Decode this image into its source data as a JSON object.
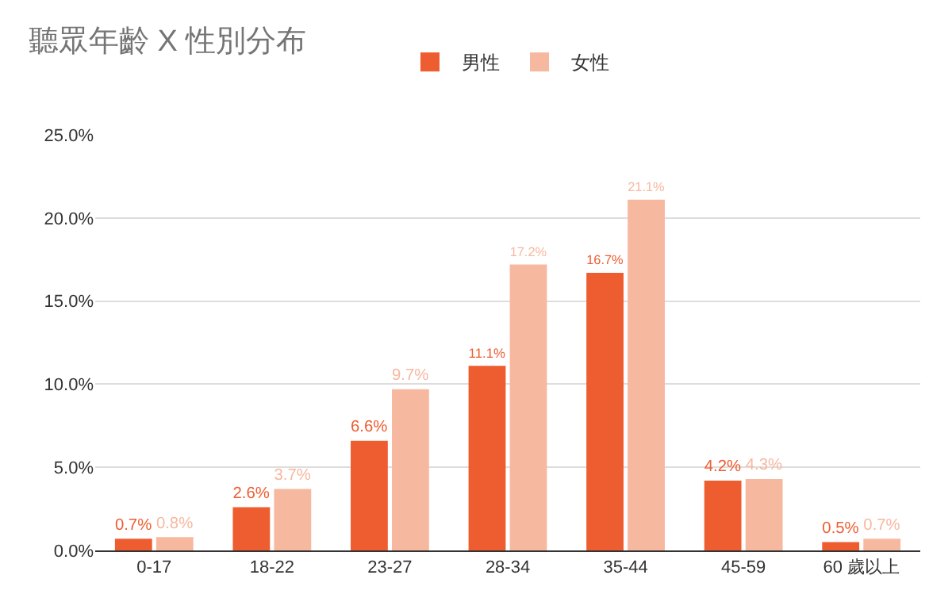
{
  "chart_data": {
    "type": "bar",
    "title": "聽眾年齡 X 性別分布",
    "categories": [
      "0-17",
      "18-22",
      "23-27",
      "28-34",
      "35-44",
      "45-59",
      "60 歲以上"
    ],
    "series": [
      {
        "name": "男性",
        "color": "#ee5d30",
        "values": [
          0.7,
          2.6,
          6.6,
          11.1,
          16.7,
          4.2,
          0.5
        ],
        "value_labels": [
          "0.7%",
          "2.6%",
          "6.6%",
          "11.1%",
          "16.7%",
          "4.2%",
          "0.5%"
        ]
      },
      {
        "name": "女性",
        "color": "#f7b8a0",
        "values": [
          0.8,
          3.7,
          9.7,
          17.2,
          21.1,
          4.3,
          0.7
        ],
        "value_labels": [
          "0.8%",
          "3.7%",
          "9.7%",
          "17.2%",
          "21.1%",
          "4.3%",
          "0.7%"
        ]
      }
    ],
    "ylim": [
      0,
      25
    ],
    "yticks": [
      {
        "value": 0,
        "label": "0.0%"
      },
      {
        "value": 5,
        "label": "5.0%"
      },
      {
        "value": 10,
        "label": "10.0%"
      },
      {
        "value": 15,
        "label": "15.0%"
      },
      {
        "value": 20,
        "label": "20.0%"
      },
      {
        "value": 25,
        "label": "25.0%"
      }
    ],
    "grid": "y",
    "legend": "top"
  }
}
